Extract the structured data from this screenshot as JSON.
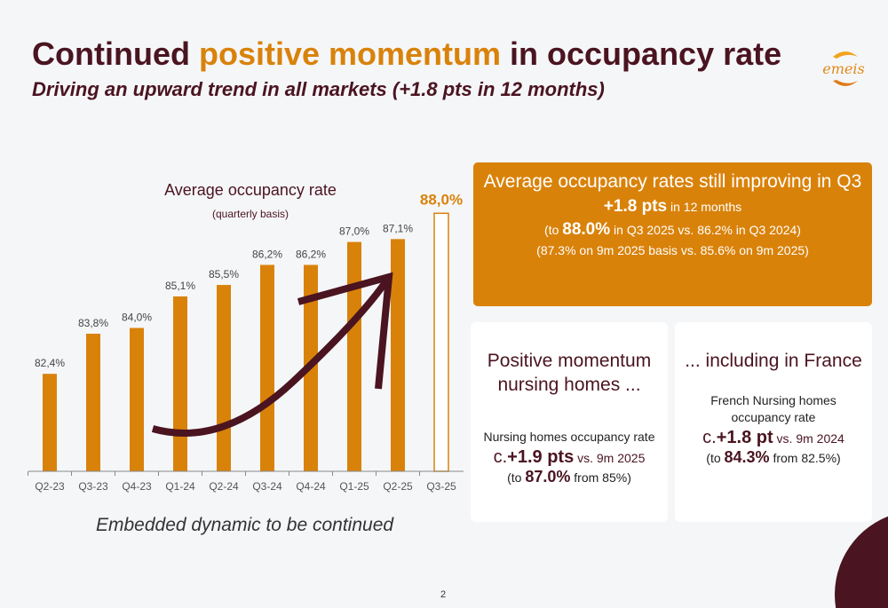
{
  "header": {
    "title_part1": "Continued ",
    "title_highlight": "positive momentum",
    "title_part2": " in occupancy rate",
    "subtitle": "Driving an upward trend in all markets (+1.8 pts in 12 months)",
    "logo_text": "emeis"
  },
  "chart_data": {
    "type": "bar",
    "title": "Average occupancy rate",
    "subtitle": "(quarterly basis)",
    "categories": [
      "Q2-23",
      "Q3-23",
      "Q4-23",
      "Q1-24",
      "Q2-24",
      "Q3-24",
      "Q4-24",
      "Q1-25",
      "Q2-25",
      "Q3-25"
    ],
    "values": [
      82.4,
      83.8,
      84.0,
      85.1,
      85.5,
      86.2,
      86.2,
      87.0,
      87.1,
      88.0
    ],
    "labels": [
      "82,4%",
      "83,8%",
      "84,0%",
      "85,1%",
      "85,5%",
      "86,2%",
      "86,2%",
      "87,0%",
      "87,1%",
      "88,0%"
    ],
    "highlighted_last": true,
    "ylim": [
      79,
      89
    ],
    "grid": false,
    "colors": {
      "bar": "#d9820a",
      "arrow": "#4a1420"
    }
  },
  "caption": "Embedded dynamic to be continued",
  "orange_box": {
    "heading": "Average occupancy rates still improving in Q3",
    "big": "+1.8 pts",
    "big_suffix": " in 12 months",
    "line1_pre": "(to ",
    "line1_bold": "88.0%",
    "line1_post": " in Q3 2025 vs. 86.2% in Q3 2024)",
    "line2": "(87.3% on 9m 2025 basis vs.  85.6% on 9m 2025)"
  },
  "box_nursing": {
    "heading": "Positive momentum nursing homes ...",
    "text": "Nursing homes occupancy rate",
    "metric_prefix": "c.",
    "metric": "+1.9 pts",
    "metric_suffix": " vs. 9m 2025",
    "sub_pre": "(to ",
    "sub_bold": "87.0%",
    "sub_post": " from 85%)"
  },
  "box_france": {
    "heading": "... including in France",
    "text": "French Nursing homes occupancy rate",
    "metric_prefix": "c.",
    "metric": "+1.8 pt",
    "metric_suffix": " vs. 9m 2024",
    "sub_pre": "(to ",
    "sub_bold": "84.3%",
    "sub_post": " from 82.5%)"
  },
  "page_number": "2"
}
